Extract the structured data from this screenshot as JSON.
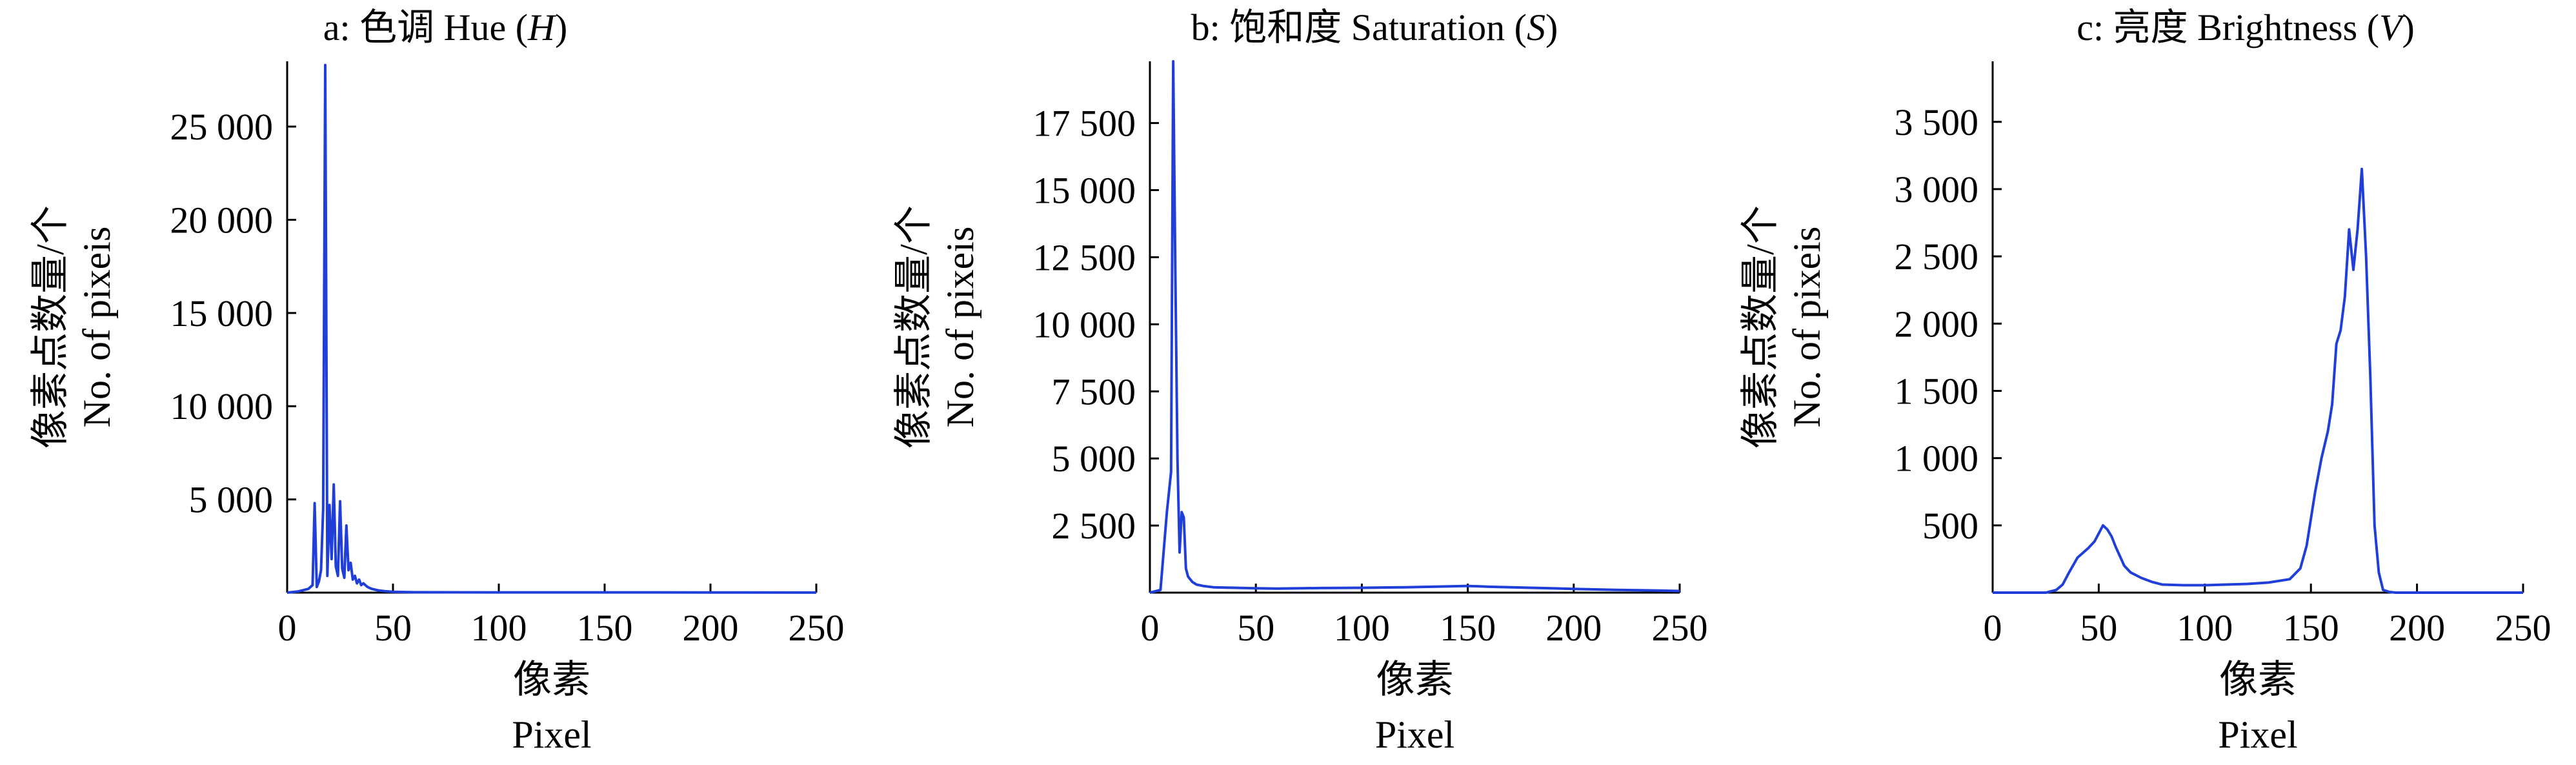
{
  "chart_data": [
    {
      "type": "line",
      "title": "a: 色调 Hue (H)",
      "title_parts": [
        "a: 色调 Hue (",
        "H",
        ")"
      ],
      "xlabel_zh": "像素",
      "xlabel_en": "Pixel",
      "ylabel_zh": "像素点数量/个",
      "ylabel_en": "No. of pixeis",
      "xlim": [
        0,
        250
      ],
      "ylim": [
        0,
        28500
      ],
      "xticks": [
        0,
        50,
        100,
        150,
        200,
        250
      ],
      "xtick_labels": [
        "0",
        "50",
        "100",
        "150",
        "200",
        "250"
      ],
      "yticks": [
        5000,
        10000,
        15000,
        20000,
        25000
      ],
      "ytick_labels": [
        "5 000",
        "10 000",
        "15 000",
        "20 000",
        "25 000"
      ],
      "color": "#1f3fd8",
      "series": [
        {
          "x": [
            0,
            5,
            10,
            12,
            13,
            14,
            15,
            16,
            17,
            18,
            19,
            20,
            21,
            22,
            23,
            24,
            25,
            26,
            27,
            28,
            29,
            30,
            31,
            32,
            33,
            34,
            35,
            36,
            38,
            40,
            43,
            46,
            50,
            60,
            100,
            150,
            200,
            250
          ],
          "y": [
            0,
            60,
            200,
            400,
            4800,
            300,
            600,
            1200,
            4500,
            28300,
            900,
            4700,
            1800,
            5800,
            1400,
            900,
            4900,
            1300,
            800,
            3600,
            1200,
            1600,
            700,
            900,
            500,
            700,
            400,
            500,
            300,
            200,
            120,
            80,
            40,
            20,
            15,
            15,
            10,
            5
          ]
        }
      ]
    },
    {
      "type": "line",
      "title": "b: 饱和度 Saturation (S)",
      "title_parts": [
        "b: 饱和度 Saturation (",
        "S",
        ")"
      ],
      "xlabel_zh": "像素",
      "xlabel_en": "Pixel",
      "ylabel_zh": "像素点数量/个",
      "ylabel_en": "No. of pixeis",
      "xlim": [
        0,
        250
      ],
      "ylim": [
        0,
        19800
      ],
      "xticks": [
        0,
        50,
        100,
        150,
        200,
        250
      ],
      "xtick_labels": [
        "0",
        "50",
        "100",
        "150",
        "200",
        "250"
      ],
      "yticks": [
        2500,
        5000,
        7500,
        10000,
        12500,
        15000,
        17500
      ],
      "ytick_labels": [
        "2 500",
        "5 000",
        "7 500",
        "10 000",
        "12 500",
        "15 000",
        "17 500"
      ],
      "color": "#1f3fd8",
      "series": [
        {
          "x": [
            0,
            5,
            8,
            10,
            11,
            12,
            13,
            14,
            15,
            16,
            17,
            18,
            20,
            22,
            25,
            30,
            40,
            50,
            60,
            80,
            100,
            120,
            140,
            150,
            160,
            180,
            200,
            220,
            240,
            250
          ],
          "y": [
            0,
            100,
            3000,
            4500,
            19800,
            12000,
            5000,
            1500,
            3000,
            2800,
            900,
            600,
            400,
            300,
            250,
            200,
            180,
            160,
            150,
            170,
            180,
            200,
            230,
            250,
            220,
            180,
            140,
            100,
            80,
            60
          ]
        }
      ]
    },
    {
      "type": "line",
      "title": "c: 亮度 Brightness (V)",
      "title_parts": [
        "c: 亮度 Brightness (",
        "V",
        ")"
      ],
      "xlabel_zh": "像素",
      "xlabel_en": "Pixel",
      "ylabel_zh": "像素点数量/个",
      "ylabel_en": "No. of pixeis",
      "xlim": [
        0,
        250
      ],
      "ylim": [
        0,
        3950
      ],
      "xticks": [
        0,
        50,
        100,
        150,
        200,
        250
      ],
      "xtick_labels": [
        "0",
        "50",
        "100",
        "150",
        "200",
        "250"
      ],
      "yticks": [
        500,
        1000,
        1500,
        2000,
        2500,
        3000,
        3500
      ],
      "ytick_labels": [
        "500",
        "1 000",
        "1 500",
        "2 000",
        "2 500",
        "3 000",
        "3 500"
      ],
      "color": "#1f3fd8",
      "series": [
        {
          "x": [
            0,
            25,
            30,
            33,
            36,
            40,
            45,
            48,
            50,
            52,
            54,
            56,
            58,
            60,
            62,
            65,
            70,
            75,
            80,
            90,
            100,
            110,
            120,
            130,
            140,
            145,
            148,
            150,
            152,
            155,
            158,
            160,
            162,
            164,
            166,
            168,
            170,
            172,
            174,
            176,
            178,
            180,
            182,
            184,
            187,
            190,
            250
          ],
          "y": [
            0,
            0,
            20,
            60,
            150,
            260,
            330,
            380,
            440,
            500,
            470,
            420,
            340,
            270,
            200,
            150,
            110,
            80,
            60,
            55,
            55,
            60,
            65,
            75,
            100,
            180,
            350,
            550,
            750,
            1000,
            1200,
            1400,
            1850,
            1950,
            2200,
            2700,
            2400,
            2700,
            3150,
            2500,
            1600,
            500,
            150,
            20,
            5,
            0,
            0
          ]
        }
      ]
    }
  ]
}
